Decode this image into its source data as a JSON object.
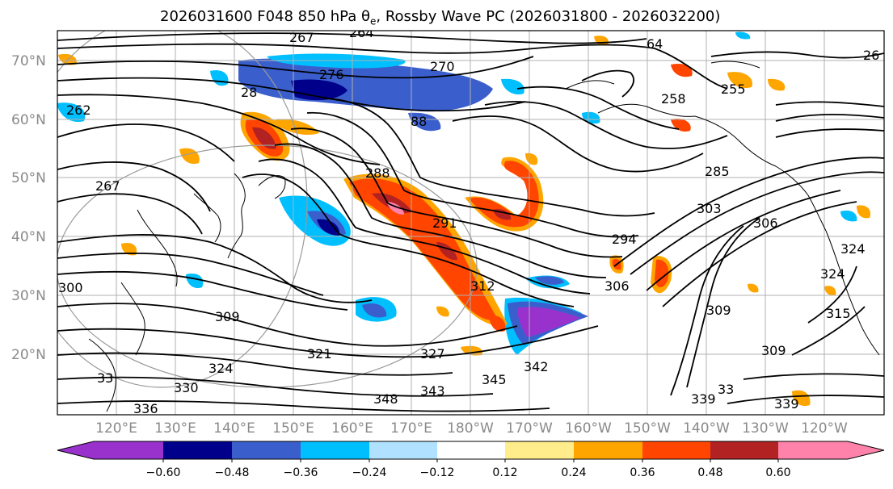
{
  "title": "2026031600 F048 850 hPa θe, Rossby Wave PC (2026031800 - 2026032200)",
  "title_parts": {
    "prefix": "2026031600 F048 850 hPa θ",
    "subscript": "e",
    "suffix": ", Rossby Wave PC (2026031800 - 2026032200)"
  },
  "map": {
    "latitude_labels": [
      "70°N",
      "60°N",
      "50°N",
      "40°N",
      "30°N",
      "20°N"
    ],
    "longitude_labels": [
      "120°E",
      "130°E",
      "140°E",
      "150°E",
      "160°E",
      "170°E",
      "180°W",
      "170°W",
      "160°W",
      "150°W",
      "140°W",
      "130°W",
      "120°W"
    ],
    "contour_labels": [
      "264",
      "267",
      "270",
      "276",
      "28",
      "88",
      "262",
      "267",
      "288",
      "291",
      "285",
      "303",
      "294",
      "306",
      "309",
      "309",
      "321",
      "327",
      "324",
      "330",
      "336",
      "348",
      "343",
      "345",
      "342",
      "33",
      "339",
      "339",
      "300",
      "324",
      "315",
      "306",
      "309",
      "26",
      "64",
      "258",
      "255",
      "312",
      "33",
      "324"
    ]
  },
  "colorbar": {
    "ticks": [
      "−0.60",
      "−0.48",
      "−0.36",
      "−0.24",
      "−0.12",
      "0.12",
      "0.24",
      "0.36",
      "0.48",
      "0.60"
    ],
    "colors": [
      "#9932cc",
      "#00008b",
      "#3a5fcd",
      "#00bfff",
      "#b0e2ff",
      "#ffffff",
      "#ffec8b",
      "#ffa500",
      "#ff4500",
      "#b22222",
      "#ff82ab"
    ]
  },
  "colors": {
    "land_outline": "#000000",
    "gridline": "#b0b0b0",
    "contour": "#000000"
  }
}
